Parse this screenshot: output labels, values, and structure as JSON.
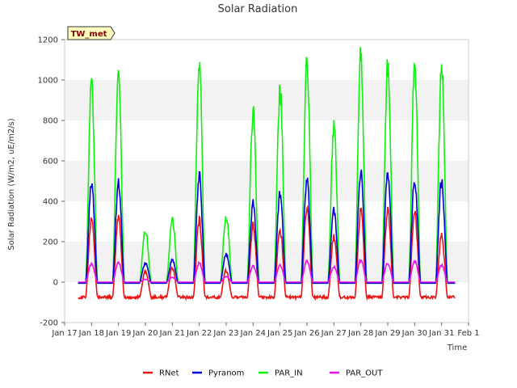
{
  "chart_data": {
    "type": "line",
    "title": "Solar Radiation",
    "xlabel": "Time",
    "ylabel": "Solar Radiation (W/m2, uE/m2/s)",
    "ylim": [
      -200,
      1200
    ],
    "xlim": [
      0,
      15
    ],
    "yticks": [
      -200,
      0,
      200,
      400,
      600,
      800,
      1000,
      1200
    ],
    "xtick_labels": [
      "Jan 17",
      "Jan 18",
      "Jan 19",
      "Jan 20",
      "Jan 21",
      "Jan 22",
      "Jan 23",
      "Jan 24",
      "Jan 25",
      "Jan 26",
      "Jan 27",
      "Jan 28",
      "Jan 29",
      "Jan 30",
      "Jan 31",
      "Feb 1"
    ],
    "grid": "horizontal bands",
    "legend_position": "bottom-center",
    "site_label": "TW_met",
    "series": [
      {
        "name": "RNet",
        "color": "#ee1111",
        "peaks": [
          340,
          345,
          60,
          80,
          330,
          65,
          300,
          280,
          390,
          250,
          375,
          380,
          370,
          250
        ],
        "night": -75
      },
      {
        "name": "Pyranom",
        "color": "#0000dd",
        "peaks": [
          530,
          520,
          100,
          120,
          555,
          150,
          410,
          460,
          545,
          380,
          595,
          560,
          545,
          535
        ],
        "night": -5
      },
      {
        "name": "PAR_IN",
        "color": "#11ee11",
        "peaks": [
          1060,
          1070,
          270,
          330,
          1155,
          350,
          890,
          1005,
          1160,
          830,
          1190,
          1150,
          1125,
          1125
        ],
        "night": -5
      },
      {
        "name": "PAR_OUT",
        "color": "#ee11ee",
        "peaks": [
          95,
          100,
          15,
          25,
          100,
          30,
          85,
          90,
          110,
          80,
          115,
          100,
          110,
          90
        ],
        "night": 0
      }
    ]
  }
}
